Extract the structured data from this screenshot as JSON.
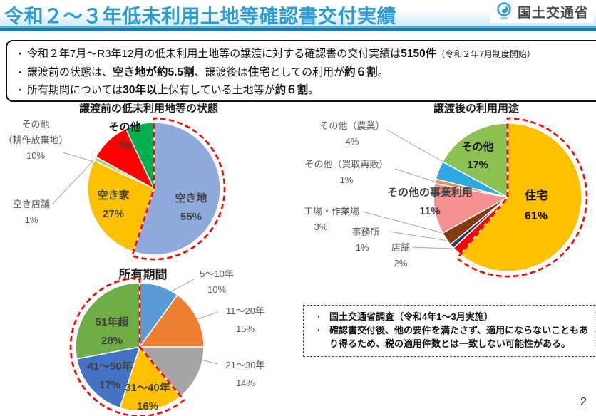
{
  "header": {
    "title": "令和２～３年低未利用土地等確認書交付実績",
    "agency": "国土交通省",
    "logo_icon": "mlit-swirl",
    "title_color": "#2E9BD5"
  },
  "summary": {
    "line1": {
      "a": "令和２年7月～R3年12月の低未利用土地等の譲渡に対する確認書の交付実績は",
      "b": "5150件",
      "c": "（令和２年7月制度開始）"
    },
    "line2": {
      "a": "譲渡前の状態は、",
      "b": "空き地が約5.5割",
      "c": "、譲渡後は",
      "d": "住宅",
      "e": "としての利用が",
      "f": "約６割",
      "g": "。"
    },
    "line3": {
      "a": "所有期間については",
      "b": "30年以上",
      "c": "保有している土地等が",
      "d": "約６割",
      "e": "。"
    }
  },
  "chart_data": [
    {
      "type": "pie",
      "title": "譲渡前の低未利用地等の状態",
      "start_angle_deg": -90,
      "direction": "clockwise",
      "slices": [
        {
          "name": "空き地",
          "pct": 55,
          "pct_label": "55%",
          "color": "#8EAADB"
        },
        {
          "name": "空き家",
          "pct": 27,
          "pct_label": "27%",
          "color": "#FFC000"
        },
        {
          "name": "空き店舗",
          "pct": 1,
          "pct_label": "1%",
          "color": "#A9D18E"
        },
        {
          "name": "その他（耕作放棄地）",
          "label_lines": [
            "その他",
            "（耕作放棄地）"
          ],
          "pct": 10,
          "pct_label": "10%",
          "color": "#FF0000"
        },
        {
          "name": "その他",
          "pct": 7,
          "pct_label": "7%",
          "color": "#00B050"
        }
      ],
      "highlight": {
        "from_pct": 0,
        "to_pct": 55,
        "color": "#FF0000",
        "style": "dashed"
      }
    },
    {
      "type": "pie",
      "title": "譲渡後の利用用途",
      "start_angle_deg": -90,
      "direction": "clockwise",
      "slices": [
        {
          "name": "住宅",
          "pct": 61,
          "pct_label": "61%",
          "color": "#FFC000"
        },
        {
          "name": "店舗",
          "pct": 2,
          "pct_label": "2%",
          "color": "#FF0000"
        },
        {
          "name": "事務所",
          "pct": 1,
          "pct_label": "1%",
          "color": "#1F3864"
        },
        {
          "name": "工場・作業場",
          "pct": 3,
          "pct_label": "3%",
          "color": "#843C0C"
        },
        {
          "name": "その他の事業利用",
          "pct": 11,
          "pct_label": "11%",
          "color": "#F4908F"
        },
        {
          "name": "その他（買取再販）",
          "pct": 1,
          "pct_label": "1%",
          "color": "#E2945F"
        },
        {
          "name": "その他（農業）",
          "pct": 4,
          "pct_label": "4%",
          "color": "#2FA9E1"
        },
        {
          "name": "その他",
          "pct": 17,
          "pct_label": "17%",
          "color": "#8DC252"
        }
      ],
      "highlight": {
        "from_pct": 0,
        "to_pct": 61,
        "color": "#FF0000",
        "style": "dashed"
      }
    },
    {
      "type": "pie",
      "title": "所有期間",
      "start_angle_deg": -90,
      "direction": "clockwise",
      "slices": [
        {
          "name": "5～10年",
          "pct": 10,
          "pct_label": "10%",
          "color": "#5B9BD5"
        },
        {
          "name": "11～20年",
          "pct": 15,
          "pct_label": "15%",
          "color": "#ED7D31"
        },
        {
          "name": "21～30年",
          "pct": 14,
          "pct_label": "14%",
          "color": "#A5A5A5"
        },
        {
          "name": "31～40年",
          "pct": 16,
          "pct_label": "16%",
          "color": "#FFC000"
        },
        {
          "name": "41～50年",
          "pct": 17,
          "pct_label": "17%",
          "color": "#4472C4"
        },
        {
          "name": "51年超",
          "pct": 28,
          "pct_label": "28%",
          "color": "#70AD47"
        }
      ],
      "highlight": {
        "from_pct": 39,
        "to_pct": 100,
        "color": "#FF0000",
        "style": "dashed"
      }
    }
  ],
  "notes": {
    "items": [
      "国土交通省調査（令和4年1～3月実施）",
      "確認書交付後、他の要件を満たさず、適用にならないこともあり得るため、税の適用件数とは一致しない可能性がある。"
    ]
  },
  "page": {
    "number": "2"
  },
  "colors": {
    "highlight_red": "#FF0000",
    "rule_top": "#49B4E4",
    "rule_bottom": "#1B79B2",
    "band_blue": "#CDE9F8"
  }
}
